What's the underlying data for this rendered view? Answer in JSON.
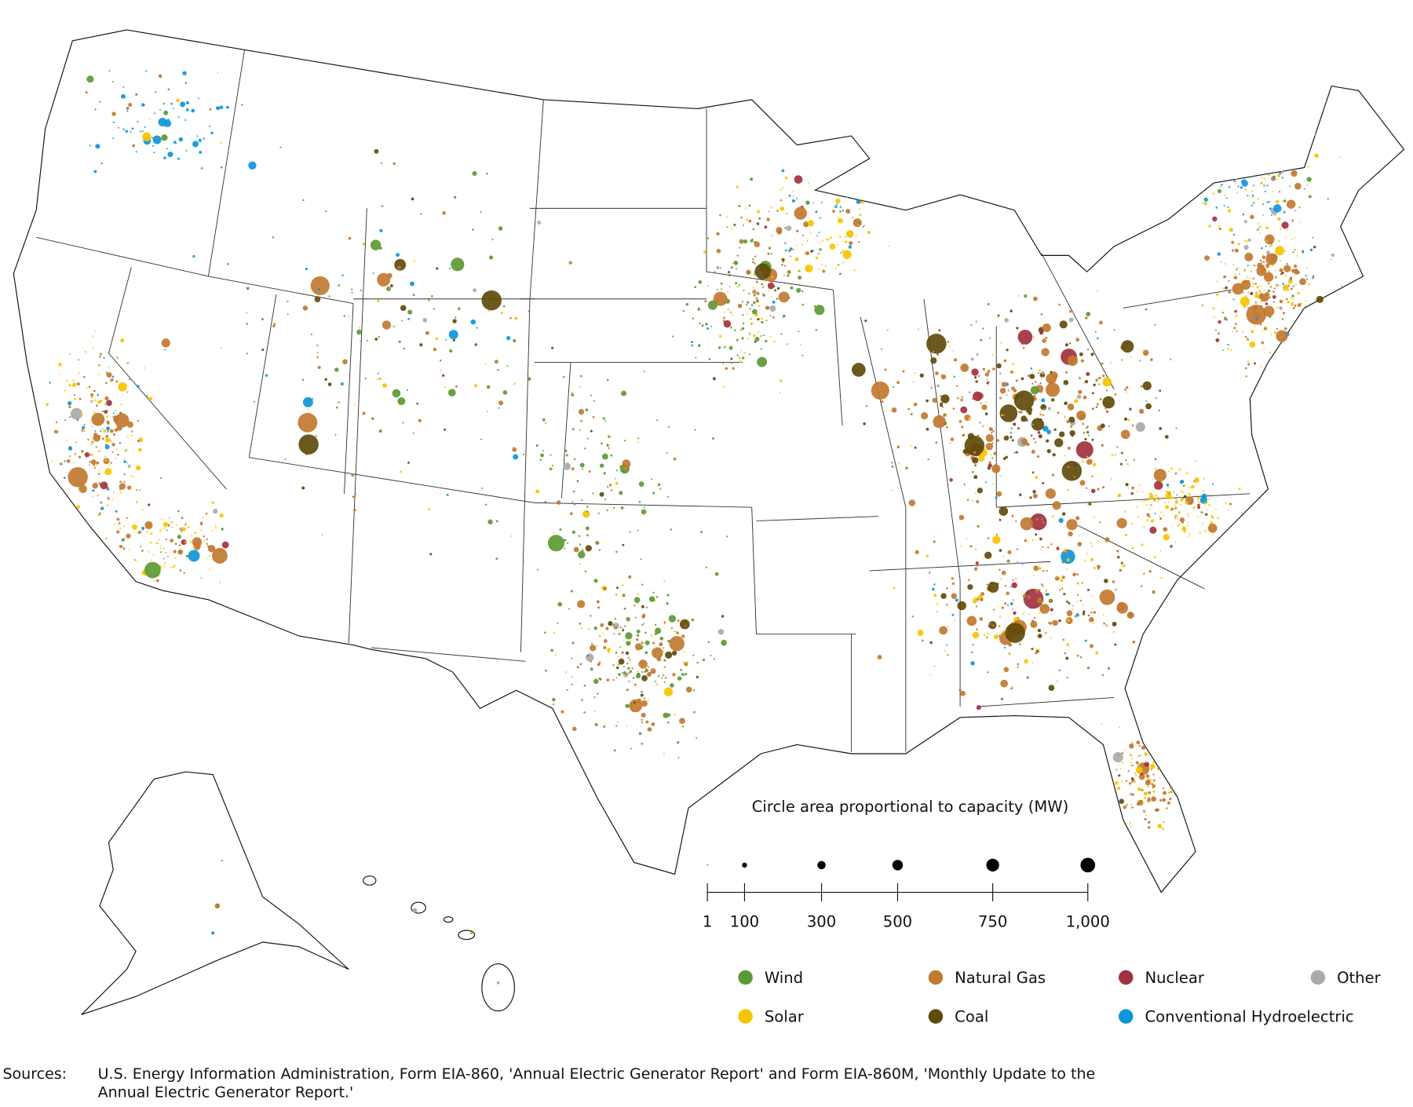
{
  "size_legend": {
    "title": "Circle area proportional to capacity (MW)",
    "ticks": [
      {
        "mw": 1,
        "label": "1"
      },
      {
        "mw": 100,
        "label": "100"
      },
      {
        "mw": 300,
        "label": "300"
      },
      {
        "mw": 500,
        "label": "500"
      },
      {
        "mw": 750,
        "label": "750"
      },
      {
        "mw": 1000,
        "label": "1,000"
      }
    ]
  },
  "fuel_legend": [
    {
      "key": "wind",
      "label": "Wind",
      "color": "#5b9a33"
    },
    {
      "key": "gas",
      "label": "Natural Gas",
      "color": "#c17a30"
    },
    {
      "key": "nuclear",
      "label": "Nuclear",
      "color": "#a2313f"
    },
    {
      "key": "other",
      "label": "Other",
      "color": "#aaaaaa"
    },
    {
      "key": "solar",
      "label": "Solar",
      "color": "#f6c400"
    },
    {
      "key": "coal",
      "label": "Coal",
      "color": "#5f4b0a"
    },
    {
      "key": "hydro",
      "label": "Conventional Hydroelectric",
      "color": "#0e96d9"
    }
  ],
  "sources": {
    "label": "Sources:",
    "line1": "U.S. Energy Information Administration, Form EIA-860, 'Annual Electric Generator Report' and Form EIA-860M, 'Monthly Update to the",
    "line2": "Annual Electric Generator Report.'"
  }
}
